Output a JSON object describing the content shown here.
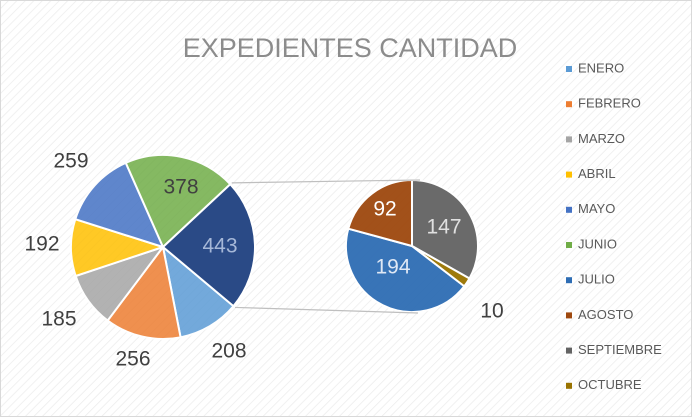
{
  "chart_data": {
    "type": "pie-of-pie",
    "title": "EXPEDIENTES CANTIDAD",
    "categories": [
      "ENERO",
      "FEBRERO",
      "MARZO",
      "ABRIL",
      "MAYO",
      "JUNIO",
      "JULIO",
      "AGOSTO",
      "SEPTIEMBRE",
      "OCTUBRE"
    ],
    "values": [
      208,
      256,
      185,
      192,
      259,
      378,
      194,
      92,
      147,
      10
    ],
    "colors": [
      "#5b9bd5",
      "#ed7d31",
      "#a5a5a5",
      "#ffc000",
      "#4472c4",
      "#70ad47",
      "#2e6db4",
      "#9e480e",
      "#636363",
      "#997300"
    ],
    "second_plot_start": 6,
    "other_value": 443,
    "other_color": "#2a4a86",
    "legend": "right"
  }
}
